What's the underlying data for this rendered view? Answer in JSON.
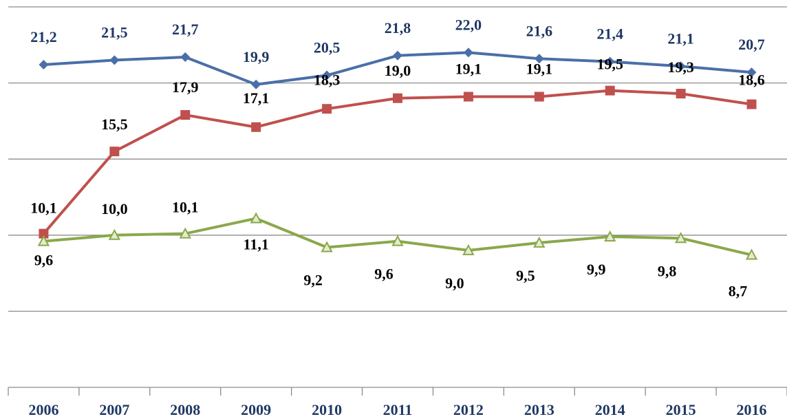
{
  "chart_data": {
    "type": "line",
    "categories": [
      "2006",
      "2007",
      "2008",
      "2009",
      "2010",
      "2011",
      "2012",
      "2013",
      "2014",
      "2015",
      "2016"
    ],
    "series": [
      {
        "color": "#4a6fa8",
        "label_color": "#1f3864",
        "marker": "diamond",
        "values": [
          21.2,
          21.5,
          21.7,
          19.9,
          20.5,
          21.8,
          22.0,
          21.6,
          21.4,
          21.1,
          20.7
        ],
        "value_labels": [
          "21,2",
          "21,5",
          "21,7",
          "19,9",
          "20,5",
          "21,8",
          "22,0",
          "21,6",
          "21,4",
          "21,1",
          "20,7"
        ]
      },
      {
        "color": "#c0504d",
        "label_color": "#000000",
        "marker": "square",
        "values": [
          10.1,
          15.5,
          17.9,
          17.1,
          18.3,
          19.0,
          19.1,
          19.1,
          19.5,
          19.3,
          18.6
        ],
        "value_labels": [
          "10,1",
          "15,5",
          "17,9",
          "17,1",
          "18,3",
          "19,0",
          "19,1",
          "19,1",
          "19,5",
          "19,3",
          "18,6"
        ]
      },
      {
        "color": "#8aa84b",
        "label_color": "#000000",
        "marker": "triangle",
        "values": [
          9.6,
          10.0,
          10.1,
          11.1,
          9.2,
          9.6,
          9.0,
          9.5,
          9.9,
          9.8,
          8.7
        ],
        "value_labels": [
          "9,6",
          "10,0",
          "10,1",
          "11,1",
          "9,2",
          "9,6",
          "9,0",
          "9,5",
          "9,9",
          "9,8",
          "8,7"
        ]
      }
    ],
    "ylim": [
      0,
      25
    ],
    "yticks": [
      0,
      5,
      10,
      15,
      20,
      25
    ],
    "grid": true
  }
}
